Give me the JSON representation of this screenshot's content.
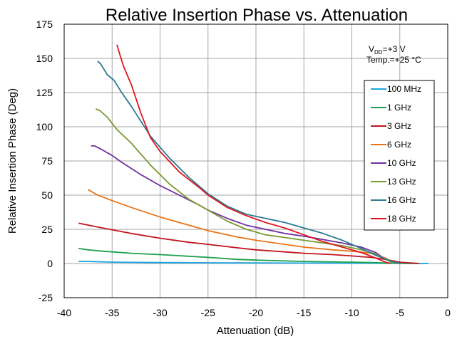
{
  "chart_data": {
    "type": "line",
    "title": "Relative Insertion Phase vs. Attenuation",
    "xlabel": "Attenuation (dB)",
    "ylabel": "Relative Insertion Phase (Deg)",
    "xlim": [
      -40,
      0
    ],
    "ylim": [
      -25,
      175
    ],
    "xticks": [
      -40,
      -35,
      -30,
      -25,
      -20,
      -15,
      -10,
      -5,
      0
    ],
    "yticks": [
      -25,
      0,
      25,
      50,
      75,
      100,
      125,
      150,
      175
    ],
    "xtick_labels": [
      "-40",
      "-35",
      "-30",
      "-25",
      "-20",
      "-15",
      "-10",
      "-5",
      "0"
    ],
    "ytick_labels": [
      "-25",
      "0",
      "25",
      "50",
      "75",
      "100",
      "125",
      "150",
      "175"
    ],
    "grid": true,
    "legend_position": "right",
    "annotations": {
      "vdd_main": "V",
      "vdd_sub": "DD",
      "vdd_value": "=+3 V",
      "temp": "Temp.=+25 °C"
    },
    "series": [
      {
        "name": "100 MHz",
        "color": "#1aa4e0",
        "x": [
          -38.5,
          -37.5,
          -35,
          -30,
          -25,
          -20,
          -15,
          -10,
          -5,
          -2
        ],
        "y": [
          1.5,
          1.5,
          1.0,
          0.7,
          0.5,
          0.4,
          0.3,
          0.2,
          0.1,
          0
        ]
      },
      {
        "name": "1 GHz",
        "color": "#1ca04c",
        "x": [
          -38.5,
          -37.5,
          -36,
          -35,
          -33,
          -30,
          -25,
          -22,
          -20,
          -15,
          -10,
          -7,
          -5,
          -3
        ],
        "y": [
          11,
          10,
          9,
          8.5,
          7.5,
          6.5,
          4.5,
          3,
          2.5,
          1.5,
          1,
          0.5,
          0.2,
          0
        ]
      },
      {
        "name": "3 GHz",
        "color": "#c0141e",
        "x": [
          -38.5,
          -36,
          -33,
          -30,
          -27,
          -25,
          -22,
          -20,
          -17,
          -15,
          -12,
          -10,
          -8,
          -6.5,
          -5,
          -3
        ],
        "y": [
          29.5,
          26,
          22,
          18.5,
          15.5,
          14,
          11.5,
          10,
          8.5,
          7.5,
          6.5,
          5.5,
          4.5,
          3,
          1,
          0
        ]
      },
      {
        "name": "6 GHz",
        "color": "#ea7317",
        "x": [
          -37.5,
          -36.5,
          -35,
          -33,
          -30,
          -27,
          -25,
          -22,
          -20,
          -17,
          -15,
          -12,
          -10,
          -8,
          -6.5,
          -5.5
        ],
        "y": [
          54,
          50,
          46,
          41,
          34,
          28,
          24,
          19.5,
          17,
          14,
          12,
          10,
          9,
          7.5,
          4,
          0
        ]
      },
      {
        "name": "10 GHz",
        "color": "#7030a0",
        "x": [
          -37.2,
          -36.8,
          -36,
          -35,
          -34,
          -32,
          -30,
          -28,
          -26,
          -25,
          -23,
          -21,
          -19,
          -17,
          -15,
          -13,
          -11,
          -9,
          -7.5,
          -6.5,
          -5.5
        ],
        "y": [
          86,
          86,
          83,
          79,
          74,
          65,
          57,
          50,
          43,
          39,
          33,
          28,
          25,
          22,
          20,
          17.5,
          15,
          12,
          8,
          3,
          0
        ]
      },
      {
        "name": "13 GHz",
        "color": "#7a9a32",
        "x": [
          -36.7,
          -36.3,
          -35.5,
          -34.5,
          -33,
          -31,
          -29,
          -27,
          -25,
          -23,
          -21,
          -19,
          -17,
          -15,
          -13,
          -11,
          -9,
          -7.5,
          -6.5,
          -5.5
        ],
        "y": [
          113,
          112,
          107,
          98,
          88,
          72,
          58,
          47,
          39,
          31,
          25,
          21,
          19,
          17,
          15,
          13,
          10,
          7,
          3,
          0
        ]
      },
      {
        "name": "16 GHz",
        "color": "#2b7a93",
        "x": [
          -36.5,
          -36.2,
          -35.5,
          -34.8,
          -34,
          -33,
          -31,
          -29,
          -27,
          -25,
          -23,
          -21,
          -19,
          -17,
          -15,
          -13,
          -11,
          -9,
          -7.5,
          -6,
          -5
        ],
        "y": [
          148,
          146,
          138,
          134,
          125,
          115,
          93,
          77,
          63,
          51,
          42,
          36,
          33,
          30,
          26,
          22,
          17,
          11,
          6,
          2,
          0
        ]
      },
      {
        "name": "18 GHz",
        "color": "#e0161e",
        "x": [
          -34.5,
          -34.2,
          -33.8,
          -33,
          -32,
          -31,
          -30,
          -28,
          -26,
          -25,
          -23,
          -21,
          -19,
          -17,
          -15,
          -13,
          -11,
          -9,
          -7.5,
          -6.5,
          -6
        ],
        "y": [
          160,
          153,
          144,
          131,
          110,
          92,
          82,
          67,
          56,
          50,
          41,
          35,
          30,
          26,
          21,
          16,
          12,
          8,
          4,
          1,
          0
        ]
      }
    ]
  }
}
